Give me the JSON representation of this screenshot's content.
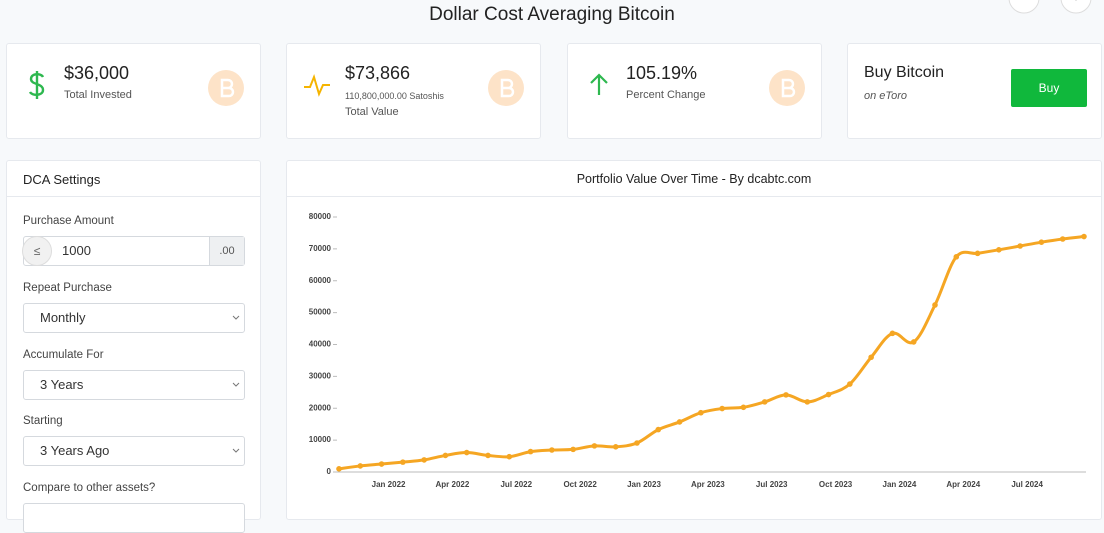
{
  "header": {
    "title": "Dollar Cost Averaging Bitcoin"
  },
  "cards": [
    {
      "value": "$36,000",
      "label": "Total Invested"
    },
    {
      "value": "$73,866",
      "detail": "110,800,000.00 Satoshis",
      "label": "Total Value"
    },
    {
      "value": "105.19%",
      "label": "Percent Change"
    },
    {
      "value": "Buy Bitcoin",
      "label": "on eToro",
      "button": "Buy"
    }
  ],
  "settings": {
    "title": "DCA Settings",
    "purchase_amount": {
      "label": "Purchase Amount",
      "prefix": "≤",
      "value": "1000",
      "suffix": ".00"
    },
    "repeat": {
      "label": "Repeat Purchase",
      "value": "Monthly"
    },
    "accumulate": {
      "label": "Accumulate For",
      "value": "3 Years"
    },
    "starting": {
      "label": "Starting",
      "value": "3 Years Ago"
    },
    "compare": {
      "label": "Compare to other assets?"
    }
  },
  "chart_data": {
    "type": "line",
    "title": "Portfolio Value Over Time - By dcabtc.com",
    "categories": [
      null,
      null,
      "Jan 2022",
      null,
      null,
      "Apr 2022",
      null,
      null,
      "Jul 2022",
      null,
      null,
      "Oct 2022",
      null,
      null,
      "Jan 2023",
      null,
      null,
      "Apr 2023",
      null,
      null,
      "Jul 2023",
      null,
      null,
      "Oct 2023",
      null,
      null,
      "Jan 2024",
      null,
      null,
      "Apr 2024",
      null,
      null,
      "Jul 2024",
      null,
      null,
      null
    ],
    "values": [
      1000,
      1900,
      2500,
      3100,
      3800,
      5200,
      6100,
      5200,
      4800,
      6400,
      6900,
      7100,
      8200,
      7900,
      9100,
      13300,
      15700,
      18600,
      19900,
      20300,
      22000,
      24200,
      22000,
      24300,
      27600,
      36000,
      43500,
      40800,
      52400,
      67500,
      68600,
      69700,
      70900,
      72100,
      73100,
      73866
    ],
    "color": "#f5a623",
    "ylim": [
      0,
      80000
    ],
    "yticks": [
      0,
      10000,
      20000,
      30000,
      40000,
      50000,
      60000,
      70000,
      80000
    ]
  }
}
